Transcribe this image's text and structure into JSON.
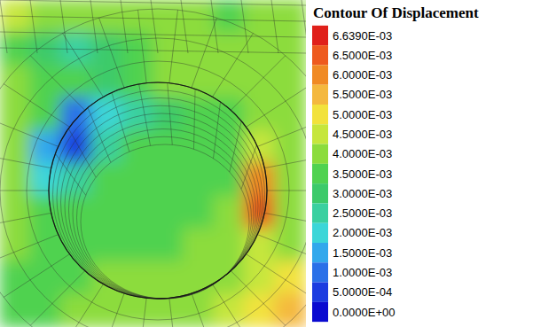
{
  "chart_data": {
    "type": "contour",
    "title": "Contour Of Displacement",
    "colorbar": {
      "ticks": [
        {
          "value": 0.006639,
          "label": "6.6390E-03"
        },
        {
          "value": 0.0065,
          "label": "6.5000E-03"
        },
        {
          "value": 0.006,
          "label": "6.0000E-03"
        },
        {
          "value": 0.0055,
          "label": "5.5000E-03"
        },
        {
          "value": 0.005,
          "label": "5.0000E-03"
        },
        {
          "value": 0.0045,
          "label": "4.5000E-03"
        },
        {
          "value": 0.004,
          "label": "4.0000E-03"
        },
        {
          "value": 0.0035,
          "label": "3.5000E-03"
        },
        {
          "value": 0.003,
          "label": "3.0000E-03"
        },
        {
          "value": 0.0025,
          "label": "2.5000E-03"
        },
        {
          "value": 0.002,
          "label": "2.0000E-03"
        },
        {
          "value": 0.0015,
          "label": "1.5000E-03"
        },
        {
          "value": 0.001,
          "label": "1.0000E-03"
        },
        {
          "value": 0.0005,
          "label": "5.0000E-04"
        },
        {
          "value": 0,
          "label": "0.0000E+00"
        }
      ],
      "colors": [
        "#e0201a",
        "#ee5a1e",
        "#f08a24",
        "#f4b83e",
        "#f2e23c",
        "#c6e63c",
        "#8cdc3c",
        "#50d250",
        "#3cca6a",
        "#3ad0a0",
        "#3cd6d8",
        "#32a8ec",
        "#2a70e8",
        "#1c3ce0",
        "#0a0ad0"
      ]
    },
    "cells": [
      [
        0.0045,
        0.004,
        0.004,
        0.004,
        0.004,
        0.004,
        0.004,
        0.0035,
        0.004,
        0.004
      ],
      [
        0.0035,
        0.003,
        0.0025,
        0.003,
        0.0035,
        0.004,
        0.004,
        0.004,
        0.004,
        0.004
      ],
      [
        0.004,
        0.0035,
        0.0035,
        0.003,
        0.0035,
        0.004,
        0.004,
        0.004,
        0.004,
        0.004
      ],
      [
        0.004,
        0.0035,
        0.001,
        0.002,
        0.0025,
        0.003,
        0.0035,
        0.0035,
        0.004,
        0.004
      ],
      [
        0.004,
        0.0015,
        0.0005,
        0.0025,
        0.0035,
        0.0035,
        0.0035,
        0.0035,
        0.0045,
        0.004
      ],
      [
        0.004,
        0.002,
        0.0025,
        0.0035,
        0.0035,
        0.0035,
        0.0035,
        0.0035,
        0.006,
        0.004
      ],
      [
        0.004,
        0.0035,
        0.0035,
        0.0035,
        0.0035,
        0.0035,
        0.0035,
        0.004,
        0.0065,
        0.004
      ],
      [
        0.004,
        0.0035,
        0.0035,
        0.0035,
        0.0035,
        0.0035,
        0.004,
        0.004,
        0.0045,
        0.004
      ],
      [
        0.0035,
        0.0035,
        0.0035,
        0.004,
        0.004,
        0.004,
        0.004,
        0.004,
        0.0045,
        0.005
      ],
      [
        0.0035,
        0.0035,
        0.004,
        0.004,
        0.004,
        0.004,
        0.004,
        0.0045,
        0.005,
        0.0055
      ]
    ]
  }
}
